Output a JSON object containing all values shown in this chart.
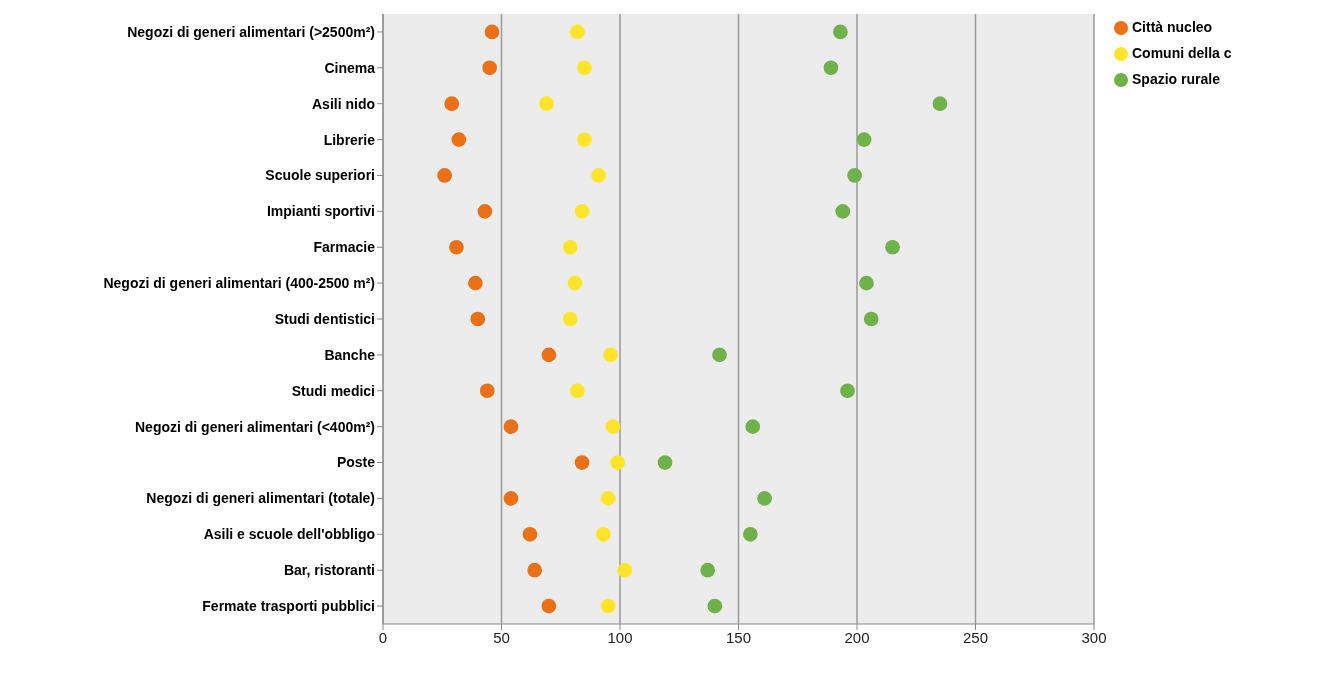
{
  "chart_data": {
    "type": "scatter",
    "categories": [
      "Negozi di generi alimentari (>2500m²)",
      "Cinema",
      "Asili nido",
      "Librerie",
      "Scuole superiori",
      "Impianti sportivi",
      "Farmacie",
      "Negozi di generi alimentari (400-2500 m²)",
      "Studi dentistici",
      "Banche",
      "Studi medici",
      "Negozi di generi alimentari (<400m²)",
      "Poste",
      "Negozi di generi alimentari (totale)",
      "Asili e scuole dell'obbligo",
      "Bar, ristoranti",
      "Fermate trasporti pubblici"
    ],
    "series": [
      {
        "name": "Città nucleo",
        "color": "#ec7016",
        "values": [
          46,
          45,
          29,
          32,
          26,
          43,
          31,
          39,
          40,
          70,
          44,
          54,
          84,
          54,
          62,
          64,
          70
        ]
      },
      {
        "name": "Comuni della c",
        "color": "#ffe42a",
        "values": [
          82,
          85,
          69,
          85,
          91,
          84,
          79,
          81,
          79,
          96,
          82,
          97,
          99,
          95,
          93,
          102,
          95
        ]
      },
      {
        "name": "Spazio rurale",
        "color": "#6fb24a",
        "values": [
          193,
          189,
          235,
          203,
          199,
          194,
          215,
          204,
          206,
          142,
          196,
          156,
          119,
          161,
          155,
          137,
          140
        ]
      }
    ],
    "orientation": "horizontal",
    "xlim": [
      0,
      300
    ],
    "xticks": [
      0,
      50,
      100,
      150,
      200,
      250,
      300
    ],
    "grid": "x",
    "legend": "top right",
    "marker": "circle"
  }
}
